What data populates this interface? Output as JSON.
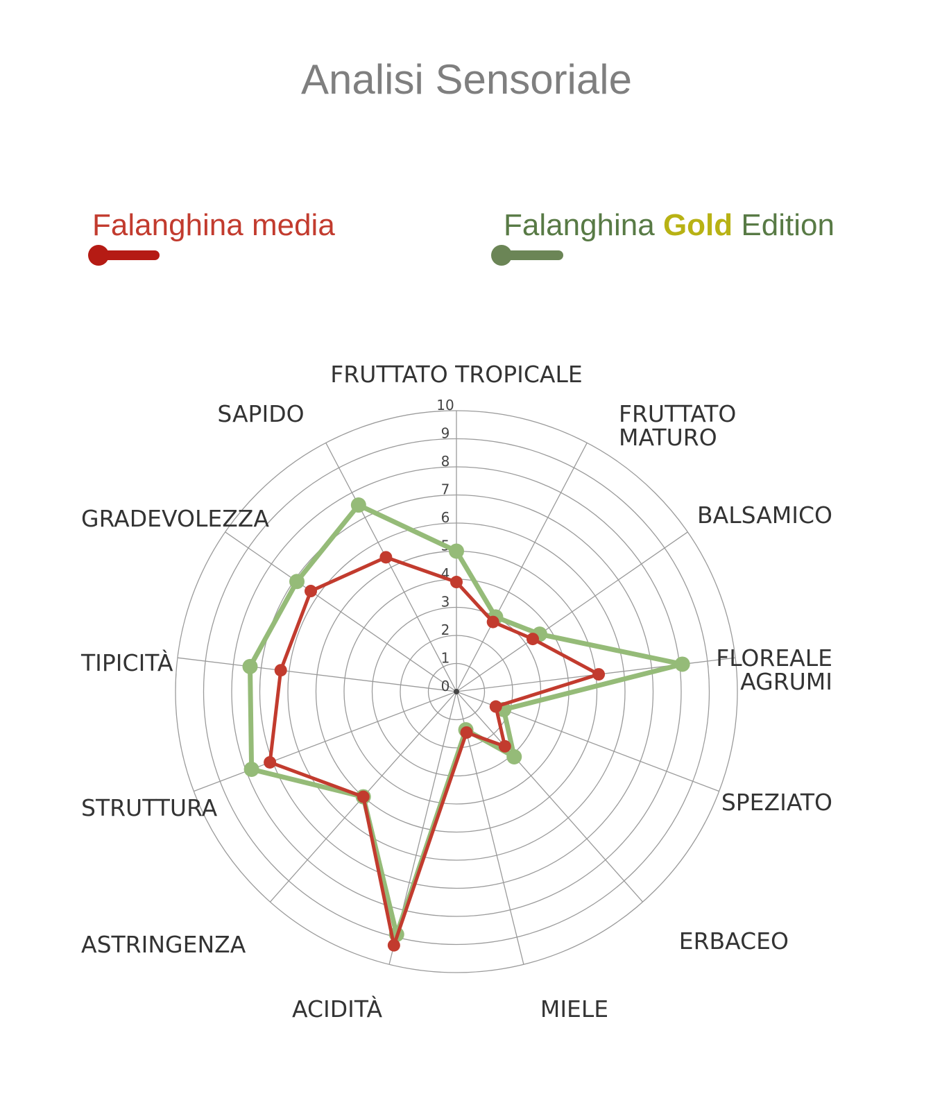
{
  "chart_data": {
    "type": "radar",
    "title": "Analisi Sensoriale",
    "r_range": [
      0,
      10
    ],
    "r_ticks": [
      "0",
      "1",
      "2",
      "3",
      "4",
      "5",
      "6",
      "7",
      "8",
      "9",
      "10"
    ],
    "categories": [
      "FRUTTATO TROPICALE",
      "FRUTTATO MATURO",
      "BALSAMICO",
      "FLOREALE AGRUMI",
      "SPEZIATO",
      "ERBACEO",
      "MIELE",
      "ACIDITÀ",
      "ASTRINGENZA",
      "STRUTTURA",
      "TIPICITÀ",
      "GRADEVOLEZZA",
      "SAPIDO"
    ],
    "category_lines": [
      [
        "FRUTTATO TROPICALE"
      ],
      [
        "FRUTTATO",
        "MATURO"
      ],
      [
        "BALSAMICO"
      ],
      [
        "FLOREALE",
        "AGRUMI"
      ],
      [
        "SPEZIATO"
      ],
      [
        "ERBACEO"
      ],
      [
        "MIELE"
      ],
      [
        "ACIDITÀ"
      ],
      [
        "ASTRINGENZA"
      ],
      [
        "STRUTTURA"
      ],
      [
        "TIPICITÀ"
      ],
      [
        "GRADEVOLEZZA"
      ],
      [
        "SAPIDO"
      ]
    ],
    "series": [
      {
        "name": "Falanghina media",
        "color": "#c23b2e",
        "values": [
          3.9,
          2.8,
          3.3,
          5.1,
          1.5,
          2.6,
          1.5,
          9.3,
          5.0,
          7.1,
          6.3,
          6.3,
          5.4
        ]
      },
      {
        "name": "Falanghina Gold Edition",
        "color": "#95bb78",
        "values": [
          5.0,
          3.0,
          3.6,
          8.1,
          1.8,
          3.1,
          1.4,
          8.9,
          5.0,
          7.8,
          7.4,
          6.9,
          7.5
        ]
      }
    ],
    "grid": true
  },
  "legend": {
    "media": {
      "label": "Falanghina media",
      "color": "#c23b2e",
      "line_color": "#b51b14"
    },
    "gold": {
      "part1": "Falanghina ",
      "part2": "Gold",
      "part3": " Edition",
      "color": "#587a45",
      "gold_color": "#b8b214",
      "line_color": "#6b8556"
    }
  },
  "grid_color": "#9a9a9a"
}
